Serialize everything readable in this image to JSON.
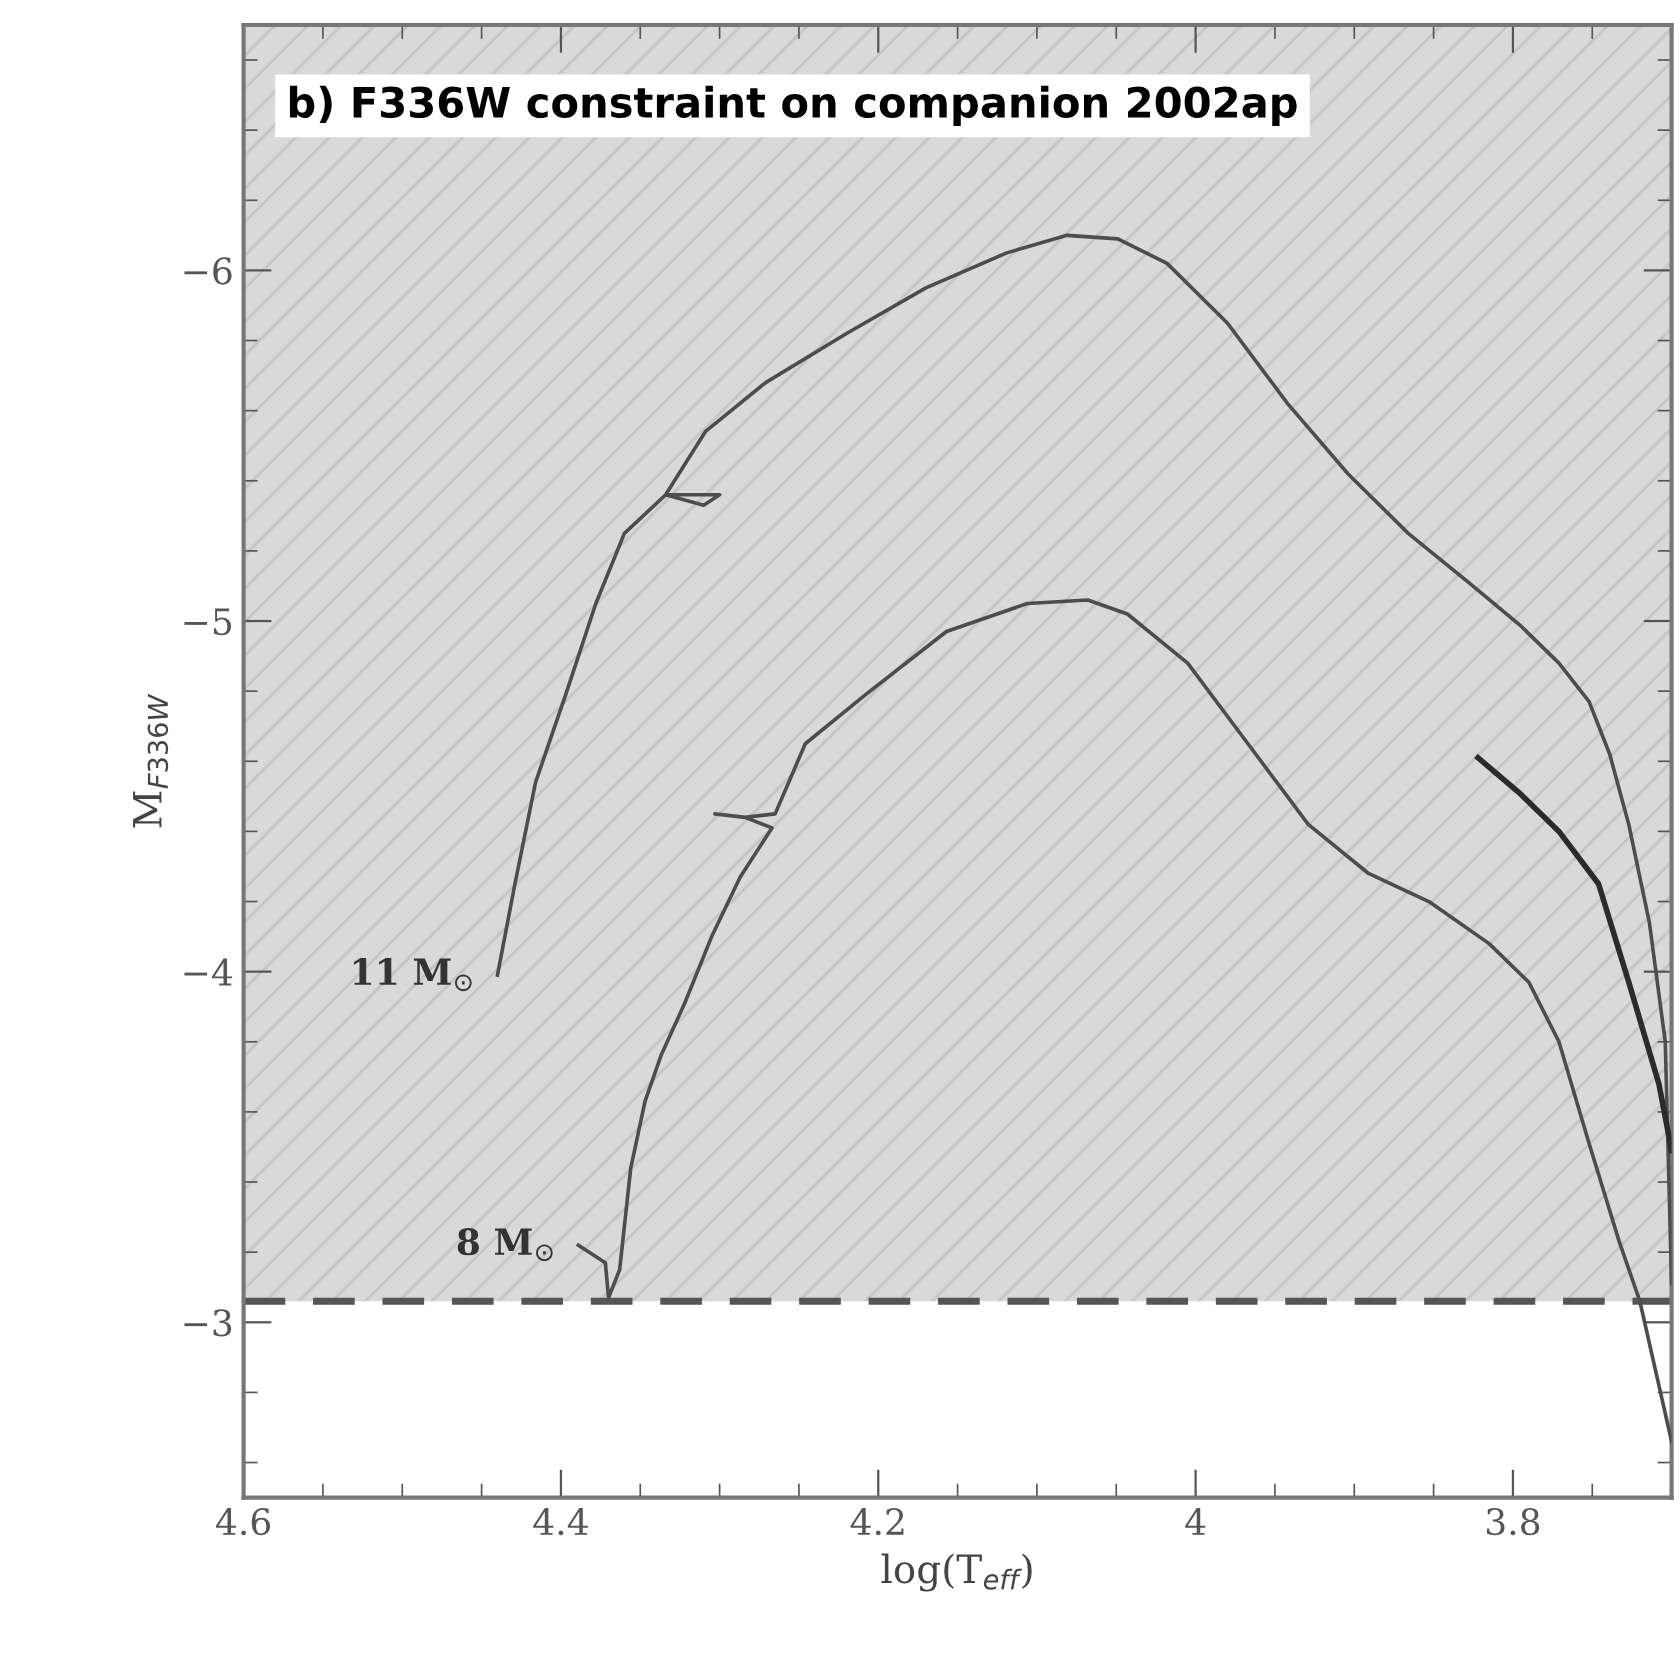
{
  "chart_data": {
    "type": "line",
    "title": "b) F336W constraint on companion 2002ap",
    "xlabel": "log(T$_{eff}$)",
    "ylabel": "M$_{F336W}$",
    "xlim": [
      4.6,
      3.7
    ],
    "ylim": [
      -2.5,
      -6.7
    ],
    "xticks": [
      4.6,
      4.4,
      4.2,
      4,
      3.8
    ],
    "yticks": [
      -6,
      -5,
      -4,
      -3
    ],
    "series": [
      {
        "name": "11 M$_{⊙}$",
        "color": "#4d4d4d",
        "x": [
          4.44,
          4.429,
          4.416,
          4.397,
          4.378,
          4.36,
          4.334,
          4.31,
          4.3,
          4.334,
          4.309,
          4.271,
          4.22,
          4.17,
          4.119,
          4.081,
          4.049,
          4.018,
          3.98,
          3.942,
          3.904,
          3.866,
          3.828,
          3.796,
          3.771,
          3.752,
          3.739,
          3.727,
          3.714,
          3.704,
          3.7
        ],
        "values": [
          -3.99,
          -4.25,
          -4.54,
          -4.79,
          -5.05,
          -5.25,
          -5.36,
          -5.33,
          -5.36,
          -5.36,
          -5.54,
          -5.68,
          -5.82,
          -5.95,
          -6.05,
          -6.1,
          -6.09,
          -6.02,
          -5.85,
          -5.62,
          -5.42,
          -5.25,
          -5.11,
          -4.99,
          -4.88,
          -4.77,
          -4.62,
          -4.42,
          -4.14,
          -3.8,
          -3.11
        ]
      },
      {
        "name": "8 M$_{⊙}$",
        "color": "#4d4d4d",
        "x": [
          4.389,
          4.372,
          4.37,
          4.363,
          4.356,
          4.347,
          4.337,
          4.322,
          4.305,
          4.287,
          4.267,
          4.284,
          4.303,
          4.284,
          4.265,
          4.246,
          4.208,
          4.157,
          4.106,
          4.068,
          4.043,
          4.005,
          3.967,
          3.929,
          3.891,
          3.853,
          3.815,
          3.79,
          3.771,
          3.752,
          3.733,
          3.72,
          3.7
        ],
        "values": [
          -3.22,
          -3.17,
          -3.07,
          -3.15,
          -3.44,
          -3.63,
          -3.76,
          -3.91,
          -4.1,
          -4.27,
          -4.41,
          -4.44,
          -4.45,
          -4.44,
          -4.45,
          -4.65,
          -4.79,
          -4.97,
          -5.05,
          -5.06,
          -5.02,
          -4.88,
          -4.65,
          -4.42,
          -4.28,
          -4.2,
          -4.08,
          -3.97,
          -3.8,
          -3.51,
          -3.23,
          -3.06,
          -2.66
        ]
      },
      {
        "color": "#2b2b2b",
        "x": [
          3.822,
          3.796,
          3.771,
          3.746,
          3.727,
          3.708,
          3.7
        ],
        "values": [
          -4.61,
          -4.51,
          -4.4,
          -4.25,
          -3.97,
          -3.68,
          -3.49
        ]
      }
    ],
    "bands": [
      {
        "axis": "y",
        "from": -3.06,
        "to": -6.7,
        "color": "#d9d9d9"
      }
    ],
    "ref_lines": [
      {
        "axis": "y",
        "value": -3.06,
        "line_style": "dashed",
        "color": "#555555"
      }
    ],
    "grid": false,
    "legend": false
  }
}
